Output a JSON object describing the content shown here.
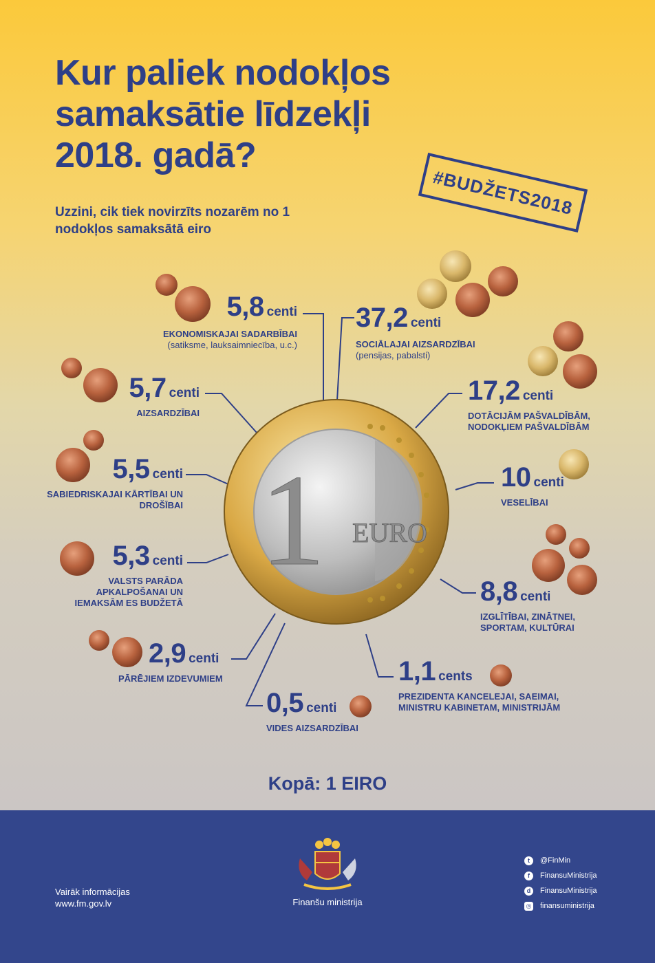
{
  "title": "Kur paliek nodokļos samaksātie līdzekļi 2018. gadā?",
  "subtitle": "Uzzini, cik tiek novirzīts nozarēm no 1 nodokļos samaksātā eiro",
  "hashtag": "#BUDŽETS2018",
  "coin": {
    "denomination": "1",
    "currency": "EURO"
  },
  "items": [
    {
      "amount": "5,8",
      "unit": "centi",
      "label": "EKONOMISKAJAI SADARBĪBAI",
      "note": "(satiksme, lauksaimniecība, u.c.)",
      "coins": [
        "1",
        "5"
      ]
    },
    {
      "amount": "37,2",
      "unit": "centi",
      "label": "SOCIĀLAJAI AIZSARDZĪBAI",
      "note": "(pensijas, pabalsti)",
      "coins": [
        "20",
        "10",
        "5",
        "2"
      ]
    },
    {
      "amount": "5,7",
      "unit": "centi",
      "label": "AIZSARDZĪBAI",
      "coins": [
        "1",
        "5"
      ]
    },
    {
      "amount": "17,2",
      "unit": "centi",
      "label": "DOTĀCIJĀM PAŠVALDĪBĀM, NODOKĻIEM PAŠVALDĪBĀM",
      "coins": [
        "2",
        "10",
        "5"
      ]
    },
    {
      "amount": "5,5",
      "unit": "centi",
      "label": "SABIEDRISKAJAI KĀRTĪBAI UN DROŠĪBAI",
      "coins": [
        "1",
        "5"
      ]
    },
    {
      "amount": "10",
      "unit": "centi",
      "label": "VESELĪBAI",
      "coins": [
        "10"
      ]
    },
    {
      "amount": "5,3",
      "unit": "centi",
      "label": "VALSTS PARĀDA APKALPOŠANAI UN IEMAKSĀM ES BUDŽETĀ",
      "coins": [
        "5"
      ]
    },
    {
      "amount": "8,8",
      "unit": "centi",
      "label": "IZGLĪTĪBAI, ZINĀTNEI, SPORTAM, KULTŪRAI",
      "coins": [
        "1",
        "1",
        "5",
        "2"
      ]
    },
    {
      "amount": "2,9",
      "unit": "centi",
      "label": "PĀRĒJIEM IZDEVUMIEM",
      "coins": [
        "1",
        "2"
      ]
    },
    {
      "amount": "1,1",
      "unit": "cents",
      "label": "PREZIDENTA KANCELEJAI, SAEIMAI, MINISTRU KABINETAM, MINISTRIJĀM",
      "coins": [
        "1"
      ]
    },
    {
      "amount": "0,5",
      "unit": "centi",
      "label": "VIDES AIZSARDZĪBAI",
      "coins": [
        "1"
      ]
    }
  ],
  "total": "Kopā: 1 EIRO",
  "footer": {
    "more_label": "Vairāk informācijas",
    "website": "www.fm.gov.lv",
    "ministry": "Finanšu ministrija",
    "social": [
      {
        "icon": "twitter-icon",
        "handle": "@FinMin"
      },
      {
        "icon": "facebook-icon",
        "handle": "FinansuMinistrija"
      },
      {
        "icon": "draugiem-icon",
        "handle": "FinansuMinistrija"
      },
      {
        "icon": "instagram-icon",
        "handle": "finansuministrija"
      }
    ]
  },
  "colors": {
    "text": "#2e3f87",
    "footer": "#33468c",
    "copper": "#b8623e",
    "gold": "#d9b76a"
  }
}
